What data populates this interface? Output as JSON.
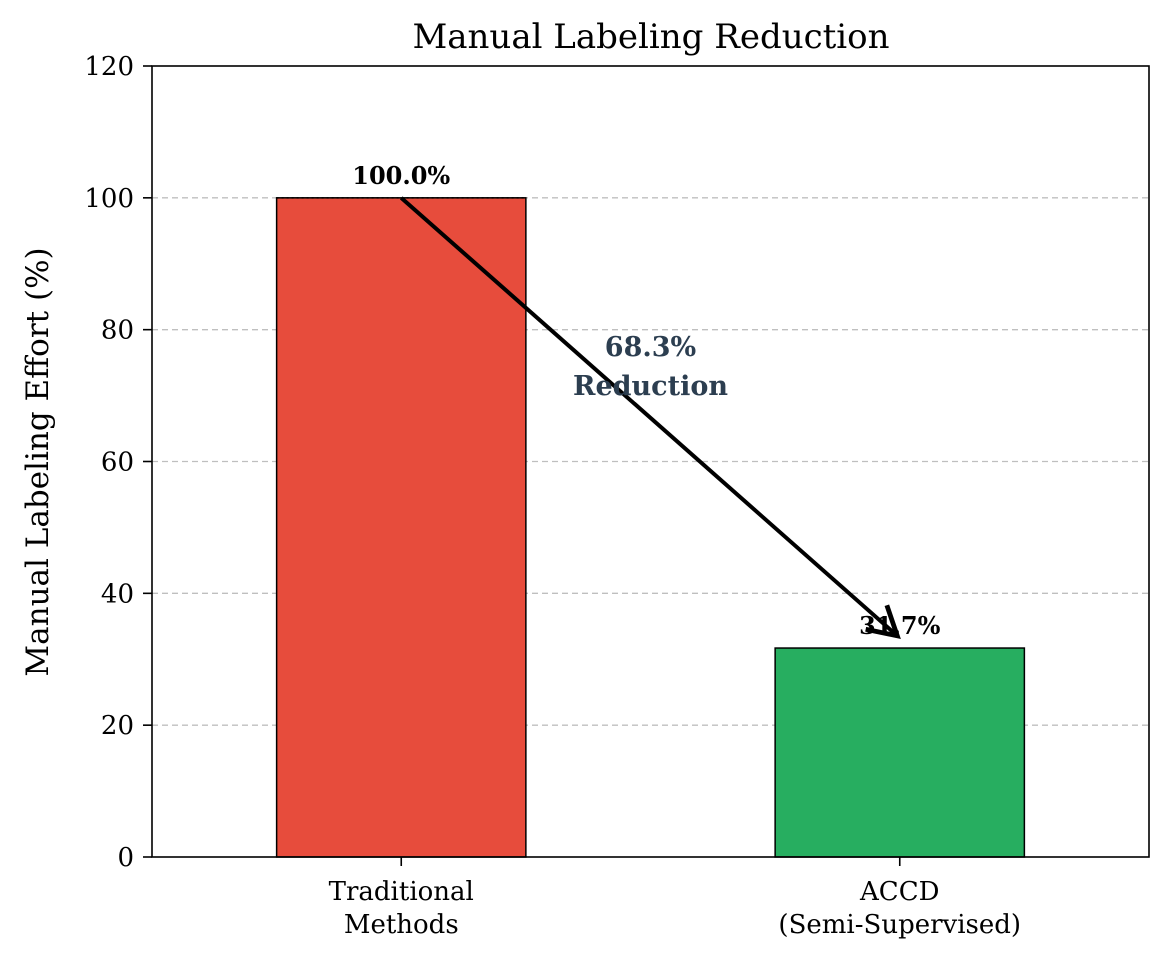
{
  "chart_data": {
    "type": "bar",
    "title": "Manual Labeling Reduction",
    "xlabel": "",
    "ylabel": "Manual Labeling Effort (%)",
    "ylim": [
      0,
      120
    ],
    "yticks": [
      0,
      20,
      40,
      60,
      80,
      100,
      120
    ],
    "grid": "y-dashed",
    "categories": [
      [
        "Traditional",
        "Methods"
      ],
      [
        "ACCD",
        "(Semi-Supervised)"
      ]
    ],
    "values": [
      100.0,
      31.7
    ],
    "data_labels": [
      "100.0%",
      "31.7%"
    ],
    "colors": [
      "#e74c3c",
      "#27ae60"
    ],
    "annotation": {
      "lines": [
        "68.3%",
        "Reduction"
      ],
      "color": "#2c3e50",
      "arrow_from": [
        0,
        100.0
      ],
      "arrow_to": [
        1,
        31.7
      ]
    }
  }
}
